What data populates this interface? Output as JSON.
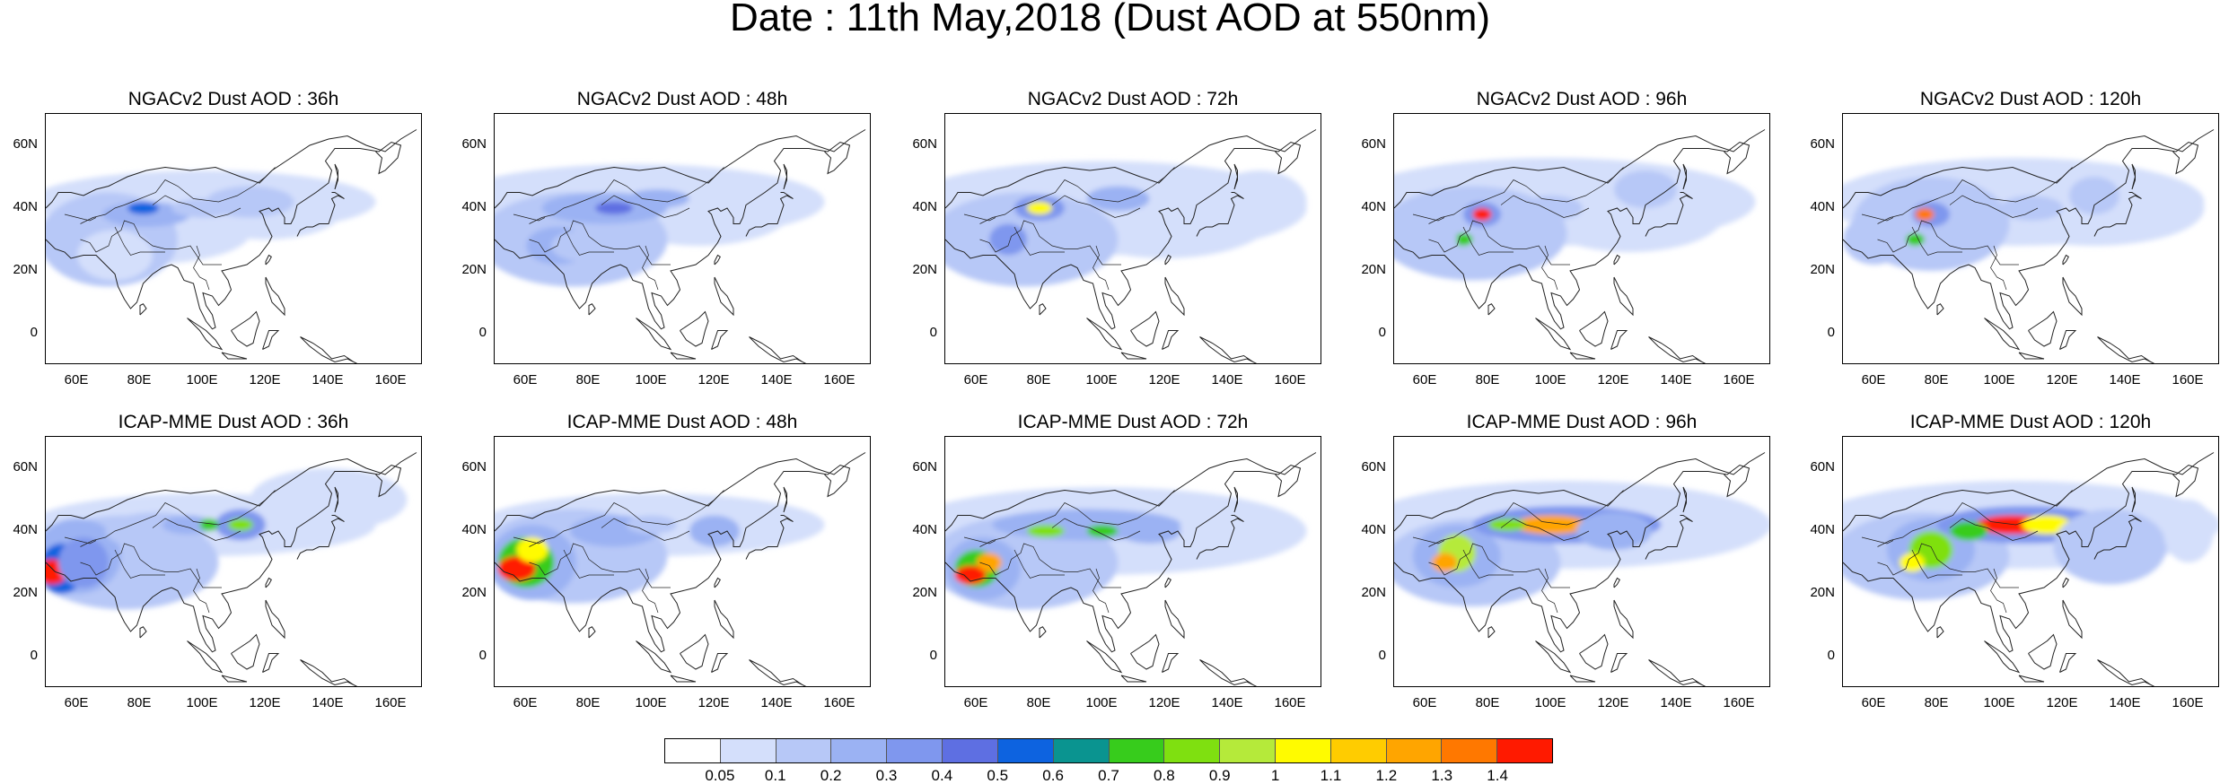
{
  "title": "Date : 11th May,2018 (Dust AOD at 550nm)",
  "map_extent": {
    "lon_min": 50,
    "lon_max": 170,
    "lat_min": -10,
    "lat_max": 70
  },
  "ytick_labels": [
    "60N",
    "40N",
    "20N",
    "0"
  ],
  "ytick_values": [
    60,
    40,
    20,
    0
  ],
  "xtick_labels": [
    "60E",
    "80E",
    "100E",
    "120E",
    "140E",
    "160E"
  ],
  "xtick_values": [
    60,
    80,
    100,
    120,
    140,
    160
  ],
  "panels": [
    {
      "title": "NGACv2 Dust AOD : 36h",
      "model": "NGACv2",
      "lead": "36h"
    },
    {
      "title": "NGACv2 Dust AOD : 48h",
      "model": "NGACv2",
      "lead": "48h"
    },
    {
      "title": "NGACv2 Dust AOD : 72h",
      "model": "NGACv2",
      "lead": "72h"
    },
    {
      "title": "NGACv2 Dust AOD : 96h",
      "model": "NGACv2",
      "lead": "96h"
    },
    {
      "title": "NGACv2 Dust AOD : 120h",
      "model": "NGACv2",
      "lead": "120h"
    },
    {
      "title": "ICAP-MME Dust AOD : 36h",
      "model": "ICAP-MME",
      "lead": "36h"
    },
    {
      "title": "ICAP-MME Dust AOD : 48h",
      "model": "ICAP-MME",
      "lead": "48h"
    },
    {
      "title": "ICAP-MME Dust AOD : 72h",
      "model": "ICAP-MME",
      "lead": "72h"
    },
    {
      "title": "ICAP-MME Dust AOD : 96h",
      "model": "ICAP-MME",
      "lead": "96h"
    },
    {
      "title": "ICAP-MME Dust AOD : 120h",
      "model": "ICAP-MME",
      "lead": "120h"
    }
  ],
  "colorbar": {
    "labels": [
      "0.05",
      "0.1",
      "0.2",
      "0.3",
      "0.4",
      "0.5",
      "0.6",
      "0.7",
      "0.8",
      "0.9",
      "1",
      "1.1",
      "1.2",
      "1.3",
      "1.4"
    ],
    "colors": [
      "#ffffff",
      "#d4dffb",
      "#b7c8f7",
      "#9bb2f3",
      "#7f97ee",
      "#5e6fe2",
      "#0d63e0",
      "#0a9490",
      "#37cc1c",
      "#7fe010",
      "#b5ea3a",
      "#fffb00",
      "#ffcc00",
      "#ffa500",
      "#ff7800",
      "#ff1a00"
    ]
  }
}
